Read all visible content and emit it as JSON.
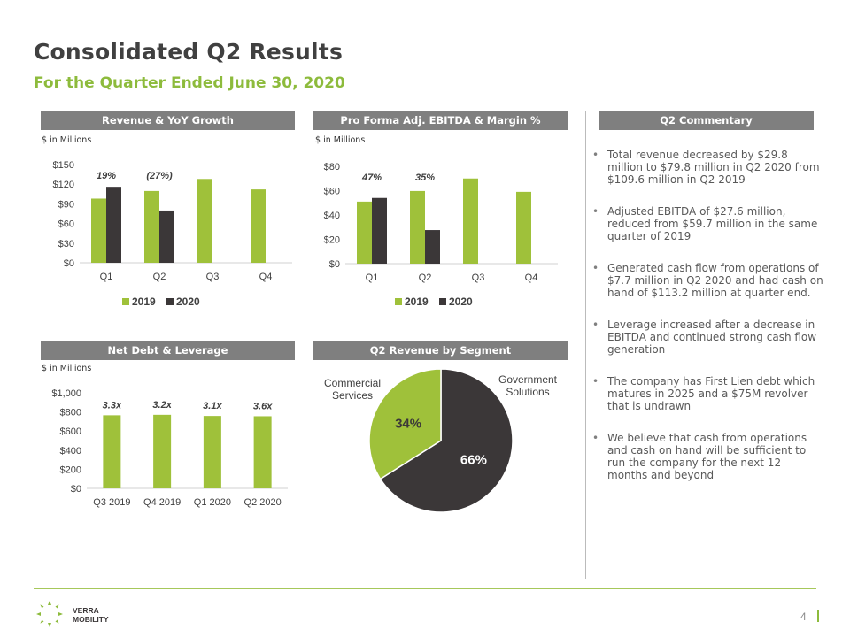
{
  "header": {
    "title": "Consolidated Q2 Results",
    "subtitle": "For the Quarter Ended June 30, 2020"
  },
  "colors": {
    "green": "#9fc13a",
    "dark": "#3b3738",
    "header_gray": "#7f7f7f",
    "accent": "#8dbb3c"
  },
  "panels": {
    "revenue": {
      "title": "Revenue & YoY Growth",
      "unit": "$ in Millions"
    },
    "ebitda": {
      "title": "Pro Forma Adj. EBITDA & Margin %",
      "unit": "$ in Millions"
    },
    "commentary": {
      "title": "Q2 Commentary"
    },
    "debt": {
      "title": "Net Debt & Leverage",
      "unit": "$ in Millions"
    },
    "segment": {
      "title": "Q2 Revenue by Segment"
    }
  },
  "chart_data": [
    {
      "type": "bar",
      "title": "Revenue & YoY Growth",
      "categories": [
        "Q1",
        "Q2",
        "Q3",
        "Q4"
      ],
      "series": [
        {
          "name": "2019",
          "values": [
            98,
            109.6,
            128,
            112
          ]
        },
        {
          "name": "2020",
          "values": [
            116,
            79.8,
            null,
            null
          ]
        }
      ],
      "annotations": [
        "19%",
        "(27%)",
        "",
        ""
      ],
      "ylim": [
        0,
        150
      ],
      "yticks": [
        "$0",
        "$30",
        "$60",
        "$90",
        "$120",
        "$150"
      ],
      "ytick_values": [
        0,
        30,
        60,
        90,
        120,
        150
      ],
      "legend": "bottom"
    },
    {
      "type": "bar",
      "title": "Pro Forma Adj. EBITDA & Margin %",
      "categories": [
        "Q1",
        "Q2",
        "Q3",
        "Q4"
      ],
      "series": [
        {
          "name": "2019",
          "values": [
            51,
            59.7,
            70,
            59
          ]
        },
        {
          "name": "2020",
          "values": [
            54,
            27.6,
            null,
            null
          ]
        }
      ],
      "annotations": [
        "47%",
        "35%",
        "",
        ""
      ],
      "ylim": [
        0,
        80
      ],
      "yticks": [
        "$0",
        "$20",
        "$40",
        "$60",
        "$80"
      ],
      "ytick_values": [
        0,
        20,
        40,
        60,
        80
      ],
      "legend": "bottom"
    },
    {
      "type": "bar",
      "title": "Net Debt & Leverage",
      "categories": [
        "Q3 2019",
        "Q4 2019",
        "Q1 2020",
        "Q2 2020"
      ],
      "series": [
        {
          "name": "Net Debt",
          "values": [
            765,
            770,
            758,
            755
          ]
        }
      ],
      "annotations": [
        "3.3x",
        "3.2x",
        "3.1x",
        "3.6x"
      ],
      "ylim": [
        0,
        1000
      ],
      "yticks": [
        "$0",
        "$200",
        "$400",
        "$600",
        "$800",
        "$1,000"
      ],
      "ytick_values": [
        0,
        200,
        400,
        600,
        800,
        1000
      ]
    },
    {
      "type": "pie",
      "title": "Q2 Revenue by Segment",
      "labels": [
        "Government Solutions",
        "Commercial Services"
      ],
      "label_lines": [
        [
          "Government",
          "Solutions"
        ],
        [
          "Commercial",
          "Services"
        ]
      ],
      "values": [
        66,
        34
      ],
      "value_labels": [
        "66%",
        "34%"
      ],
      "colors": [
        "#3b3738",
        "#9fc13a"
      ]
    }
  ],
  "commentary": [
    "Total revenue decreased by $29.8 million to $79.8 million in Q2 2020 from $109.6 million in Q2 2019",
    "Adjusted EBITDA of $27.6 million, reduced from $59.7 million in the same quarter of 2019",
    "Generated cash flow from operations of $7.7 million in Q2 2020 and had cash on hand of $113.2 million at quarter end.",
    "Leverage increased after a decrease in EBITDA and continued strong cash flow generation",
    "The company has First Lien debt which matures in 2025 and a $75M revolver that is undrawn",
    "We believe that cash from operations and cash on hand will be sufficient to run the company for the next 12 months and beyond"
  ],
  "footer": {
    "logo_line1": "VERRA",
    "logo_line2": "MOBILITY",
    "page_number": "4"
  }
}
